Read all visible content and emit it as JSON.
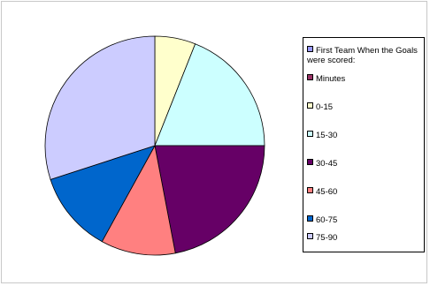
{
  "chart_data": {
    "type": "pie",
    "title": "",
    "categories": [
      "0-15",
      "15-30",
      "30-45",
      "45-60",
      "60-75",
      "75-90"
    ],
    "values": [
      6,
      19,
      22,
      11,
      12,
      30
    ],
    "colors": [
      "#ffffcc",
      "#ccffff",
      "#660066",
      "#ff8080",
      "#0066cc",
      "#ccccff"
    ],
    "legend": {
      "placement": "right",
      "entries": [
        {
          "label": "First Team When the Goals were scored:",
          "color": "#9999ff"
        },
        {
          "label": "Minutes",
          "color": "#993366"
        },
        {
          "label": "0-15",
          "color": "#ffffcc"
        },
        {
          "label": "15-30",
          "color": "#ccffff"
        },
        {
          "label": "30-45",
          "color": "#660066"
        },
        {
          "label": "45-60",
          "color": "#ff8080"
        },
        {
          "label": "60-75",
          "color": "#0066cc"
        },
        {
          "label": "75-90",
          "color": "#ccccff"
        }
      ]
    }
  }
}
